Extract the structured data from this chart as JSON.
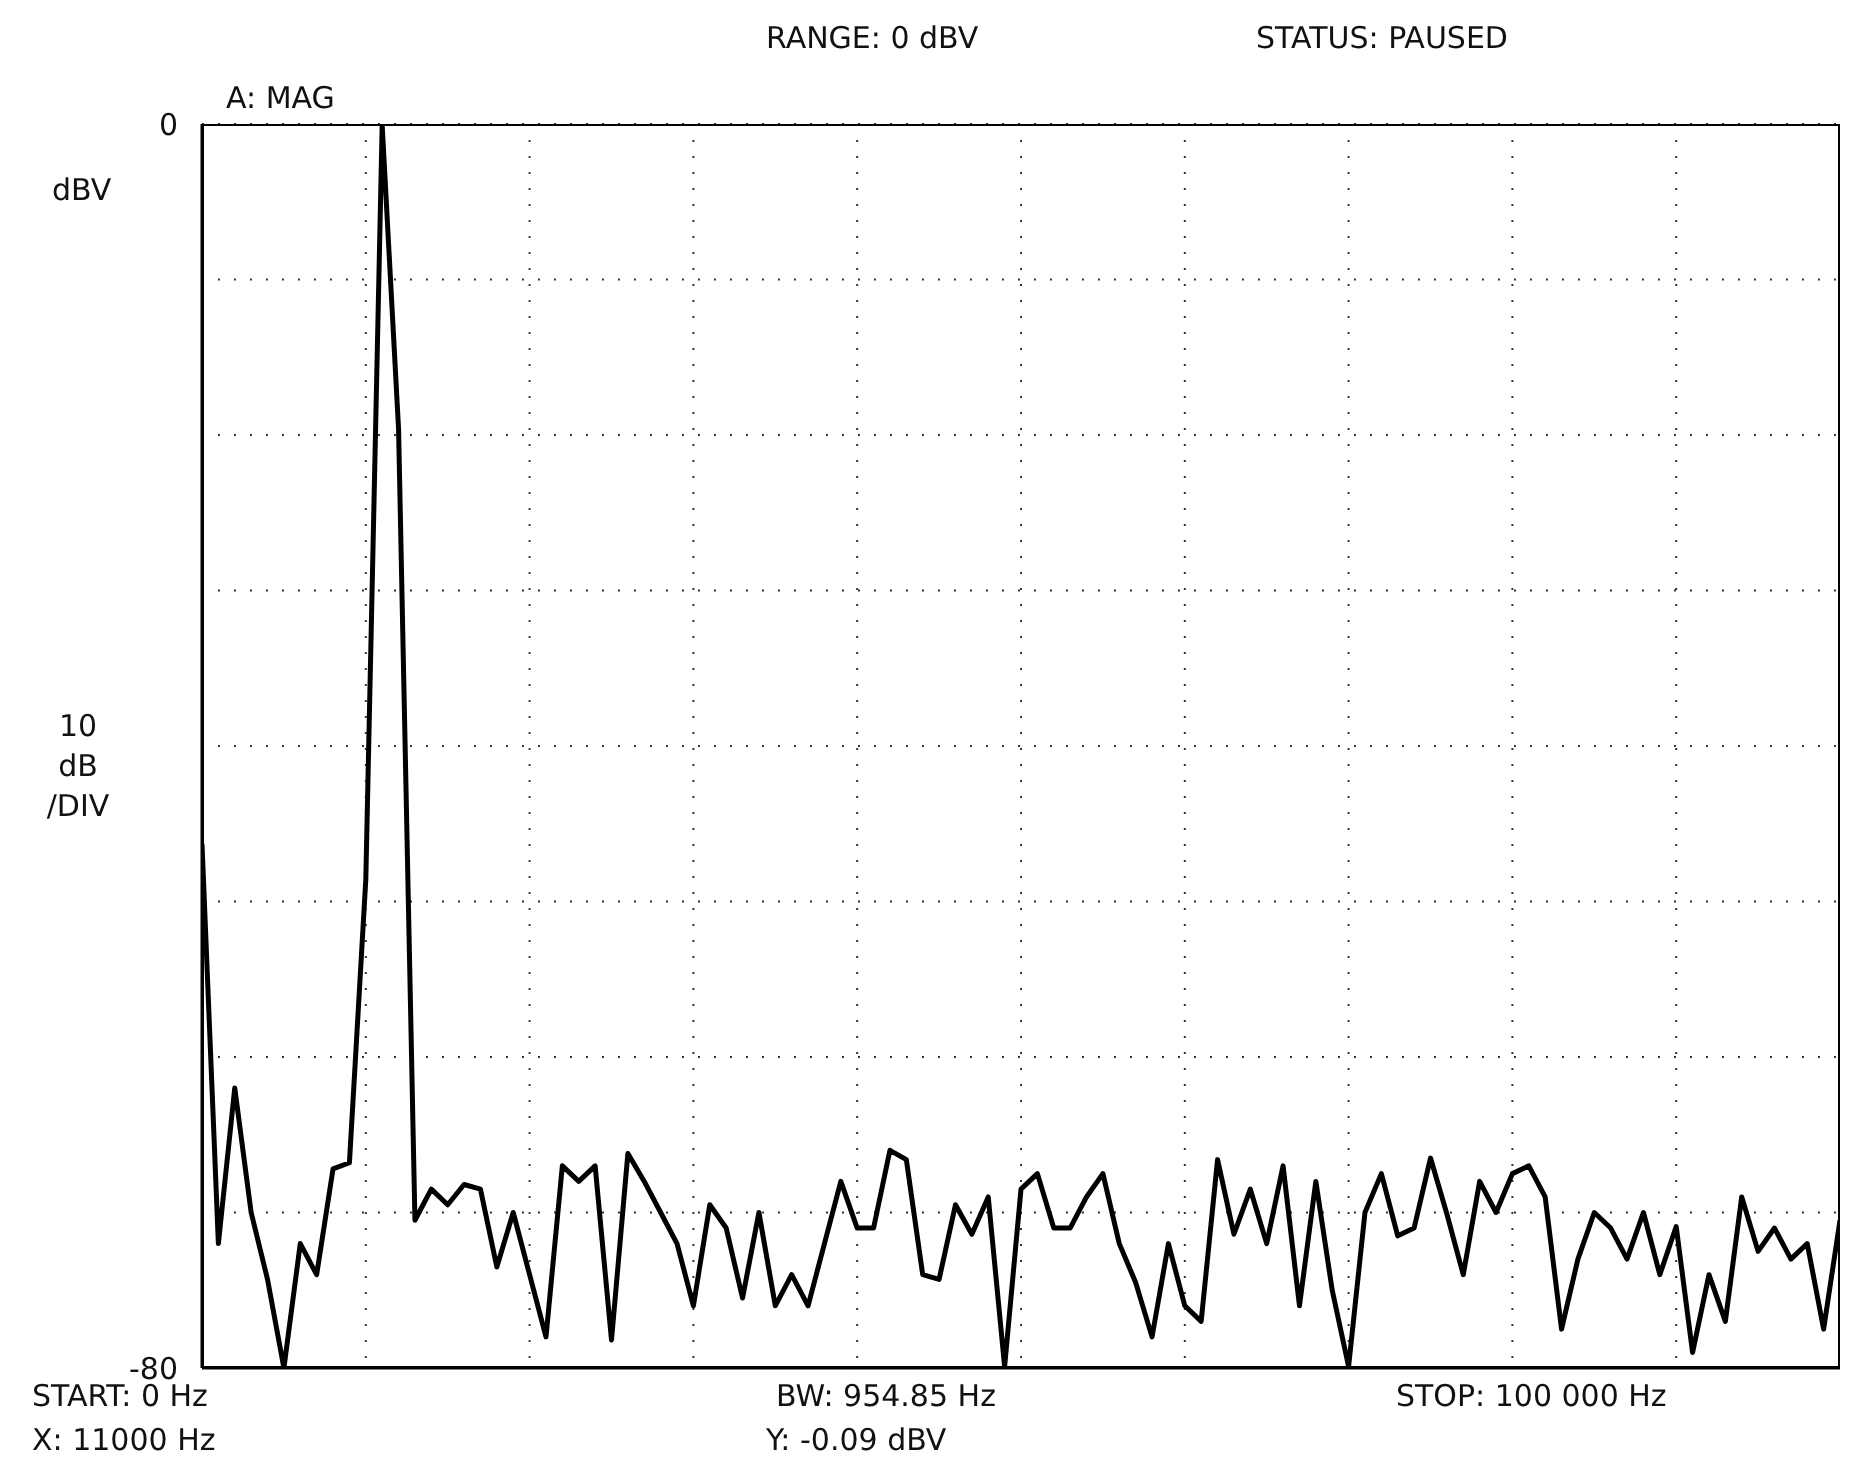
{
  "chart_data": {
    "type": "line",
    "title": "RANGE: 0 dBV",
    "subtitle": "STATUS: PAUSED",
    "ylabel": "10 dB /DIV",
    "annotations": [
      "A: MAG",
      "dBV",
      "START: 0 Hz",
      "BW: 954.85 Hz",
      "STOP: 100 000 Hz",
      "X: 11000 Hz",
      "Y: -0.09 dBV"
    ],
    "categories": [
      null,
      null,
      null,
      null,
      null,
      null,
      null,
      null,
      null,
      null,
      null,
      null,
      null,
      null,
      null,
      null,
      null,
      null,
      null,
      null,
      null,
      null,
      null,
      null,
      null,
      null,
      null,
      null,
      null,
      null,
      null,
      null,
      null,
      null,
      null,
      null,
      null,
      null,
      null,
      null,
      null,
      null,
      null,
      null,
      null,
      null,
      null,
      null,
      null,
      null,
      null,
      null,
      null,
      null,
      null,
      null,
      null,
      null,
      null,
      null,
      null,
      null,
      null,
      null,
      null,
      null,
      null,
      null,
      null,
      null,
      null,
      null,
      null,
      null,
      null,
      null,
      null,
      null,
      null,
      null,
      null,
      null,
      null,
      null,
      null,
      null,
      null,
      null,
      null,
      null,
      null,
      null,
      null,
      null,
      null,
      null,
      null,
      null,
      null,
      null,
      null
    ],
    "series": [
      {
        "color": "#000000",
        "values": [
          -46.3,
          -72,
          -62,
          -70,
          -74.3,
          -80,
          -72,
          -74,
          -67.2,
          -66.8,
          -48.6,
          -0.09,
          -19.6,
          -70.5,
          -68.5,
          -69.5,
          -68.2,
          -68.5,
          -73.5,
          -70,
          -74,
          -78,
          -67,
          -68,
          -67,
          -78.2,
          -66.2,
          -68,
          -70,
          -72,
          -76,
          -69.5,
          -71,
          -75.5,
          -70,
          -76,
          -74,
          -76,
          -72,
          -68,
          -71,
          -71,
          -66,
          -66.6,
          -74,
          -74.3,
          -69.5,
          -71.4,
          -69,
          -79.9,
          -68.5,
          -67.5,
          -71,
          -71,
          -69,
          -67.5,
          -72,
          -74.5,
          -78,
          -72,
          -76,
          -77,
          -66.6,
          -71.4,
          -68.5,
          -72,
          -67,
          -76,
          -68,
          -75,
          -79.9,
          -70,
          -67.5,
          -71.5,
          -71,
          -66.5,
          -70.1,
          -74,
          -68,
          -70,
          -67.5,
          -67,
          -69,
          -77.5,
          -73,
          -70,
          -71,
          -73,
          -70,
          -74,
          -70.9,
          -79,
          -74,
          -77,
          -69,
          -72.5,
          -71,
          -73,
          -72,
          -77.5,
          -70.5
        ]
      }
    ],
    "ylim": [
      -80,
      0
    ],
    "yticks": [
      {
        "value": -80,
        "label": "-80"
      },
      {
        "value": -70,
        "label": null
      },
      {
        "value": -60,
        "label": null
      },
      {
        "value": -50,
        "label": null
      },
      {
        "value": -40,
        "label": null
      },
      {
        "value": -30,
        "label": null
      },
      {
        "value": -20,
        "label": null
      },
      {
        "value": -10,
        "label": null
      },
      {
        "value": 0,
        "label": "0"
      }
    ],
    "grid": true,
    "marker": "none",
    "line_style": "solid"
  }
}
